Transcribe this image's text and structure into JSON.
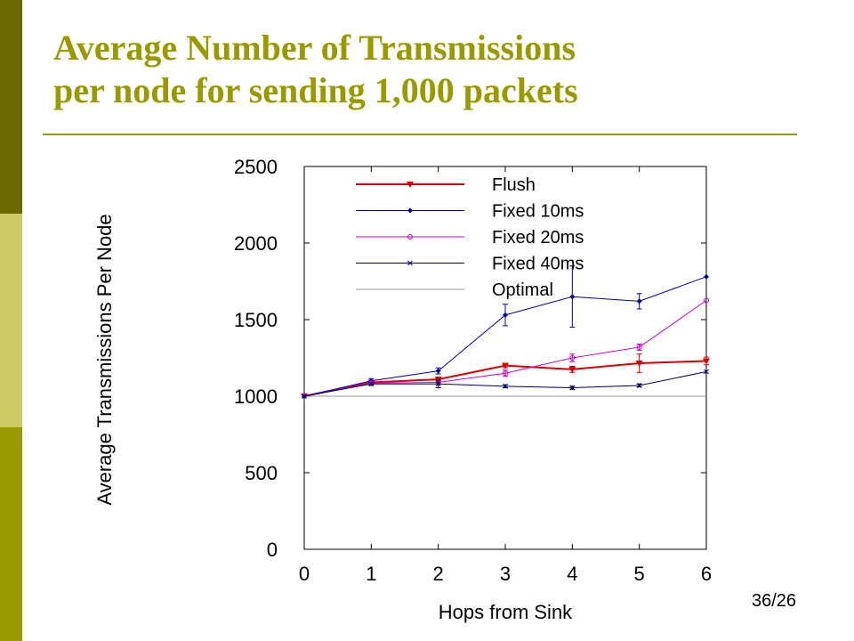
{
  "slide": {
    "title_line1": "Average Number of Transmissions",
    "title_line2": "per node for sending 1,000 packets",
    "page_number": "36/26",
    "accent_color": "#999900"
  },
  "chart_data": {
    "type": "line",
    "xlabel": "Hops from Sink",
    "ylabel": "Average Transmissions Per Node",
    "xlim": [
      0,
      6
    ],
    "ylim": [
      0,
      2500
    ],
    "x_ticks": [
      0,
      1,
      2,
      3,
      4,
      5,
      6
    ],
    "y_ticks": [
      0,
      500,
      1000,
      1500,
      2000,
      2500
    ],
    "grid": false,
    "legend_position": "top-left",
    "x": [
      0,
      1,
      2,
      3,
      4,
      5,
      6
    ],
    "series": [
      {
        "name": "Flush",
        "color": "#dd0000",
        "marker": "triangle",
        "values": [
          1000,
          1090,
          1110,
          1200,
          1175,
          1215,
          1230
        ],
        "errors": [
          0,
          10,
          15,
          15,
          20,
          60,
          25
        ]
      },
      {
        "name": "Fixed 10ms",
        "color": "#0000aa",
        "marker": "diamond",
        "values": [
          1000,
          1100,
          1165,
          1530,
          1650,
          1620,
          1780
        ],
        "errors": [
          0,
          15,
          20,
          70,
          200,
          50,
          0
        ]
      },
      {
        "name": "Fixed 20ms",
        "color": "#cc00cc",
        "marker": "circle",
        "values": [
          1000,
          1085,
          1090,
          1150,
          1250,
          1320,
          1625
        ],
        "errors": [
          0,
          10,
          10,
          20,
          25,
          20,
          0
        ]
      },
      {
        "name": "Fixed 40ms",
        "color": "#000066",
        "marker": "x",
        "values": [
          1000,
          1080,
          1080,
          1065,
          1055,
          1070,
          1160
        ],
        "errors": [
          0,
          10,
          25,
          10,
          10,
          10,
          0
        ]
      },
      {
        "name": "Optimal",
        "color": "#999999",
        "marker": "none",
        "values": [
          1000,
          1000,
          1000,
          1000,
          1000,
          1000,
          1000
        ],
        "errors": [
          0,
          0,
          0,
          0,
          0,
          0,
          0
        ]
      }
    ]
  }
}
